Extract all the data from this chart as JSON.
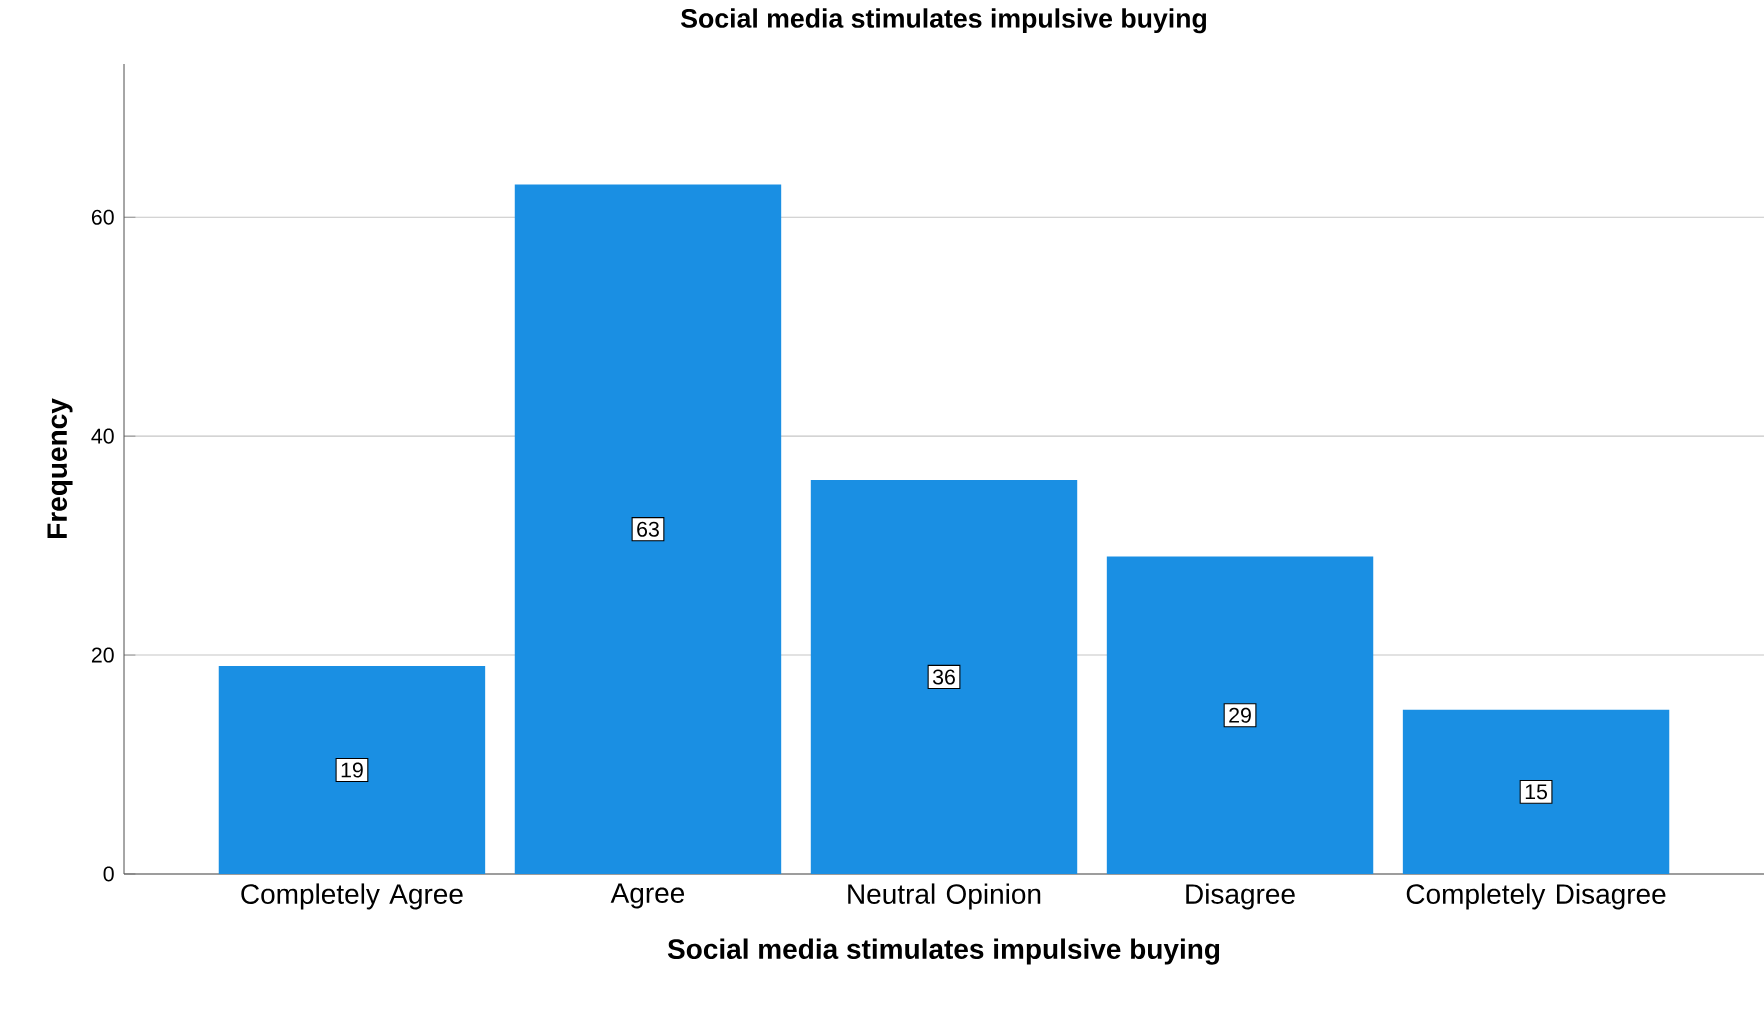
{
  "chart_data": {
    "type": "bar",
    "title": "Social media stimulates impulsive buying",
    "xlabel": "Social media stimulates impulsive buying",
    "ylabel": "Frequency",
    "categories": [
      "Completely Agree",
      "Agree",
      "Neutral Opinion",
      "Disagree",
      "Completely Disagree"
    ],
    "values": [
      19,
      63,
      36,
      29,
      15
    ],
    "color": "#1a8fe3",
    "ylim": [
      0,
      74
    ],
    "yticks": [
      0,
      20,
      40,
      60
    ],
    "grid": "y",
    "data_labels": true
  }
}
